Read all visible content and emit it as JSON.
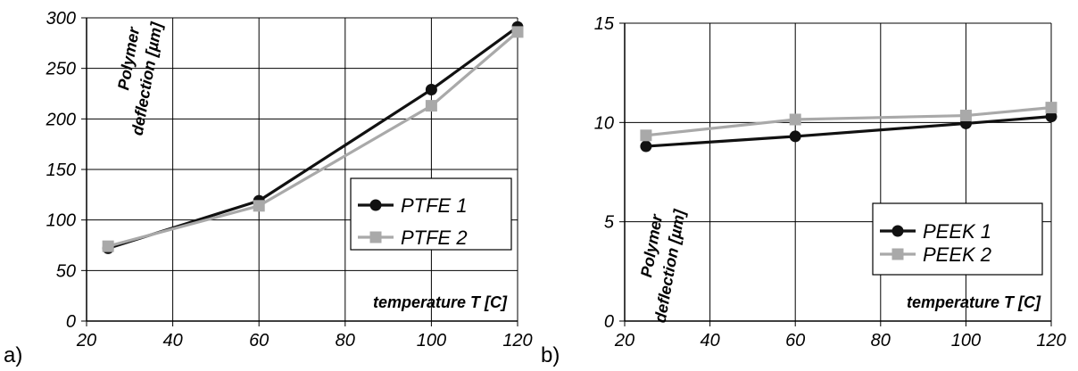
{
  "chart_data": [
    {
      "type": "line",
      "panel_label": "a)",
      "xlabel": "temperature T [C]",
      "ylabel": [
        "Polymer",
        "deflection [µm]"
      ],
      "xlim": [
        20,
        120
      ],
      "ylim": [
        0,
        300
      ],
      "xticks": [
        "20",
        "40",
        "60",
        "80",
        "100",
        "120"
      ],
      "yticks": [
        "0",
        "50",
        "100",
        "150",
        "200",
        "250",
        "300"
      ],
      "grid": true,
      "legend_position": "right",
      "series": [
        {
          "name": "PTFE 1",
          "marker": "circle",
          "color": "#111111",
          "x": [
            25,
            60,
            100,
            120
          ],
          "y": [
            72,
            119,
            229,
            291
          ]
        },
        {
          "name": "PTFE 2",
          "marker": "square",
          "color": "#a9a9a9",
          "x": [
            25,
            60,
            100,
            120
          ],
          "y": [
            74,
            114,
            213,
            286
          ]
        }
      ]
    },
    {
      "type": "line",
      "panel_label": "b)",
      "xlabel": "temperature T [C]",
      "ylabel": [
        "Polymer",
        "deflection [µm]"
      ],
      "xlim": [
        20,
        120
      ],
      "ylim": [
        0,
        15
      ],
      "xticks": [
        "20",
        "40",
        "60",
        "80",
        "100",
        "120"
      ],
      "yticks": [
        "0",
        "5",
        "10",
        "15"
      ],
      "grid": true,
      "legend_position": "bottom-right",
      "series": [
        {
          "name": "PEEK 1",
          "marker": "circle",
          "color": "#111111",
          "x": [
            25,
            60,
            100,
            120
          ],
          "y": [
            8.8,
            9.3,
            9.95,
            10.3
          ]
        },
        {
          "name": "PEEK 2",
          "marker": "square",
          "color": "#a9a9a9",
          "x": [
            25,
            60,
            100,
            120
          ],
          "y": [
            9.35,
            10.15,
            10.35,
            10.75
          ]
        }
      ]
    }
  ]
}
